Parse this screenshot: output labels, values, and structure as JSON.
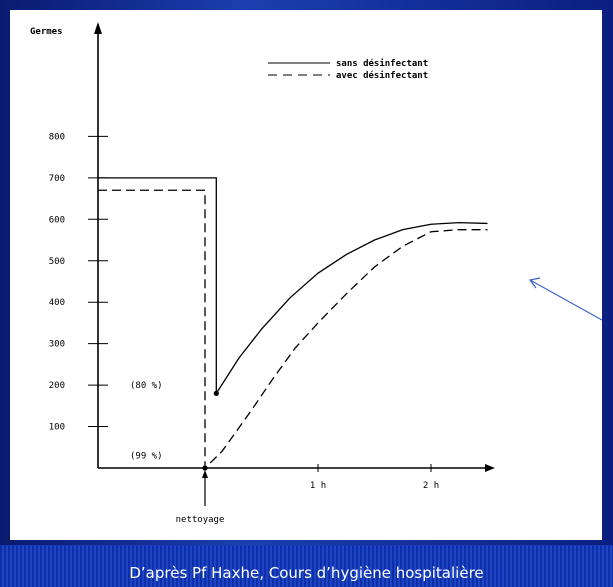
{
  "footer": {
    "caption": "D’après Pf Haxhe, Cours d’hygiène hospitalière"
  },
  "chart_data": {
    "type": "line",
    "ylabel": "Germes",
    "xlabel_marker": "nettoyage",
    "yticks": [
      100,
      200,
      300,
      400,
      500,
      600,
      700,
      800
    ],
    "xticks": [
      {
        "value": 1,
        "label": "1 h"
      },
      {
        "value": 2,
        "label": "2 h"
      }
    ],
    "ylim": [
      0,
      900
    ],
    "xlim": [
      -1,
      2.5
    ],
    "annotations": [
      {
        "text": "(80 %)",
        "y": 200
      },
      {
        "text": "(99 %)",
        "y": 30
      }
    ],
    "legend": [
      "sans désinfectant",
      "avec désinfectant"
    ],
    "legend_position": "top-right",
    "series": [
      {
        "name": "sans désinfectant",
        "style": "solid",
        "points": [
          [
            -1,
            700
          ],
          [
            0.1,
            700
          ],
          [
            0.1,
            180
          ],
          [
            0.3,
            265
          ],
          [
            0.5,
            335
          ],
          [
            0.75,
            410
          ],
          [
            1,
            470
          ],
          [
            1.25,
            515
          ],
          [
            1.5,
            550
          ],
          [
            1.75,
            575
          ],
          [
            2,
            588
          ],
          [
            2.25,
            592
          ],
          [
            2.5,
            590
          ]
        ]
      },
      {
        "name": "avec désinfectant",
        "style": "dashed",
        "points": [
          [
            -1,
            670
          ],
          [
            0,
            670
          ],
          [
            0,
            0
          ],
          [
            0.15,
            40
          ],
          [
            0.4,
            135
          ],
          [
            0.6,
            215
          ],
          [
            0.8,
            290
          ],
          [
            1,
            350
          ],
          [
            1.25,
            420
          ],
          [
            1.5,
            485
          ],
          [
            1.75,
            535
          ],
          [
            2,
            570
          ],
          [
            2.25,
            575
          ],
          [
            2.5,
            575
          ]
        ]
      }
    ],
    "grid": false,
    "pointer_arrow": true
  }
}
